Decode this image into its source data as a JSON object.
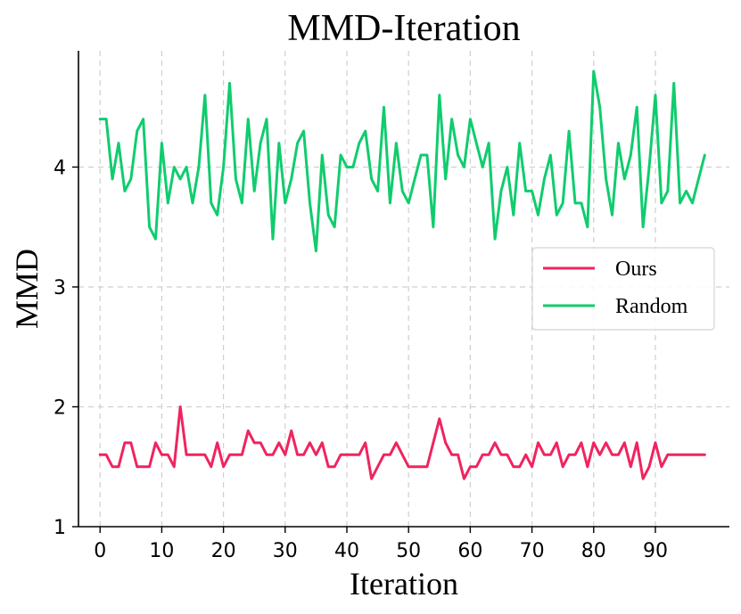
{
  "chart_data": {
    "type": "line",
    "title": "MMD-Iteration",
    "xlabel": "Iteration",
    "ylabel": "MMD",
    "xlim": [
      -3.5,
      102
    ],
    "ylim": [
      1,
      4.97
    ],
    "grid": true,
    "legend_position": "center-right",
    "x_ticks": [
      0,
      10,
      20,
      30,
      40,
      50,
      60,
      70,
      80,
      90
    ],
    "y_ticks": [
      1,
      2,
      3,
      4
    ],
    "series": [
      {
        "name": "Ours",
        "color": "#f0245f",
        "values": [
          1.6,
          1.6,
          1.5,
          1.5,
          1.7,
          1.7,
          1.5,
          1.5,
          1.5,
          1.7,
          1.6,
          1.6,
          1.5,
          2.0,
          1.6,
          1.6,
          1.6,
          1.6,
          1.5,
          1.7,
          1.5,
          1.6,
          1.6,
          1.6,
          1.8,
          1.7,
          1.7,
          1.6,
          1.6,
          1.7,
          1.6,
          1.8,
          1.6,
          1.6,
          1.7,
          1.6,
          1.7,
          1.5,
          1.5,
          1.6,
          1.6,
          1.6,
          1.6,
          1.7,
          1.4,
          1.5,
          1.6,
          1.6,
          1.7,
          1.6,
          1.5,
          1.5,
          1.5,
          1.5,
          1.7,
          1.9,
          1.7,
          1.6,
          1.6,
          1.4,
          1.5,
          1.5,
          1.6,
          1.6,
          1.7,
          1.6,
          1.6,
          1.5,
          1.5,
          1.6,
          1.5,
          1.7,
          1.6,
          1.6,
          1.7,
          1.5,
          1.6,
          1.6,
          1.7,
          1.5,
          1.7,
          1.6,
          1.7,
          1.6,
          1.6,
          1.7,
          1.5,
          1.7,
          1.4,
          1.5,
          1.7,
          1.5,
          1.6,
          1.6,
          1.6,
          1.6,
          1.6,
          1.6,
          1.6
        ]
      },
      {
        "name": "Random",
        "color": "#10cc6e",
        "values": [
          4.4,
          4.4,
          3.9,
          4.2,
          3.8,
          3.9,
          4.3,
          4.4,
          3.5,
          3.4,
          4.2,
          3.7,
          4.0,
          3.9,
          4.0,
          3.7,
          4.0,
          4.6,
          3.7,
          3.6,
          4.0,
          4.7,
          3.9,
          3.7,
          4.4,
          3.8,
          4.2,
          4.4,
          3.4,
          4.2,
          3.7,
          3.9,
          4.2,
          4.3,
          3.7,
          3.3,
          4.1,
          3.6,
          3.5,
          4.1,
          4.0,
          4.0,
          4.2,
          4.3,
          3.9,
          3.8,
          4.5,
          3.7,
          4.2,
          3.8,
          3.7,
          3.9,
          4.1,
          4.1,
          3.5,
          4.6,
          3.9,
          4.4,
          4.1,
          4.0,
          4.4,
          4.2,
          4.0,
          4.2,
          3.4,
          3.8,
          4.0,
          3.6,
          4.2,
          3.8,
          3.8,
          3.6,
          3.9,
          4.1,
          3.6,
          3.7,
          4.3,
          3.7,
          3.7,
          3.5,
          4.8,
          4.5,
          3.9,
          3.6,
          4.2,
          3.9,
          4.1,
          4.5,
          3.5,
          4.0,
          4.6,
          3.7,
          3.8,
          4.7,
          3.7,
          3.8,
          3.7,
          3.9,
          4.1
        ]
      }
    ]
  }
}
